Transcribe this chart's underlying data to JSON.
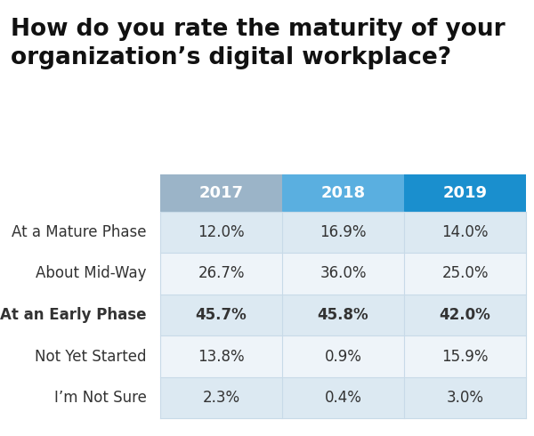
{
  "title": "How do you rate the maturity of your\norganization’s digital workplace?",
  "columns": [
    "2017",
    "2018",
    "2019"
  ],
  "col_header_colors": [
    "#9bb4c8",
    "#5aafe0",
    "#1a8fce"
  ],
  "col_header_text_color": "#ffffff",
  "rows": [
    "At a Mature Phase",
    "About Mid-Way",
    "At an Early Phase",
    "Not Yet Started",
    "I’m Not Sure"
  ],
  "data": [
    [
      "12.0%",
      "16.9%",
      "14.0%"
    ],
    [
      "26.7%",
      "36.0%",
      "25.0%"
    ],
    [
      "45.7%",
      "45.8%",
      "42.0%"
    ],
    [
      "13.8%",
      "0.9%",
      "15.9%"
    ],
    [
      "2.3%",
      "0.4%",
      "3.0%"
    ]
  ],
  "bold_row": 2,
  "bg_color": "#ffffff",
  "row_bg_even": "#dce9f2",
  "row_bg_odd": "#eef4f9",
  "grid_color": "#c8dae8",
  "title_fontsize": 19,
  "header_fontsize": 13,
  "cell_fontsize": 12,
  "row_label_fontsize": 12
}
